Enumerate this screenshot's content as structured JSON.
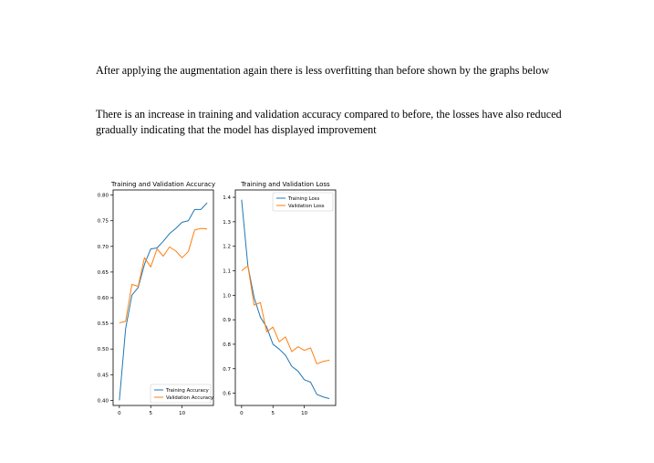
{
  "document": {
    "paragraphs": [
      "After applying the augmentation again there is less overfitting than before shown by the graphs below",
      "There is an increase in training and validation accuracy compared to before, the losses have also reduced gradually indicating that the model has displayed improvement"
    ]
  },
  "chart_data": [
    {
      "type": "line",
      "title": "Training and Validation Accuracy",
      "xlabel": "",
      "ylabel": "",
      "xlim": [
        -1,
        15
      ],
      "ylim": [
        0.39,
        0.81
      ],
      "xticks": [
        0,
        5,
        10
      ],
      "yticks": [
        0.4,
        0.45,
        0.5,
        0.55,
        0.6,
        0.65,
        0.7,
        0.75,
        0.8
      ],
      "ytick_labels": [
        "0.40",
        "0.45",
        "0.50",
        "0.55",
        "0.60",
        "0.65",
        "0.70",
        "0.75",
        "0.80"
      ],
      "xtick_labels": [
        "0",
        "5",
        "10"
      ],
      "legend_position": "lower-right",
      "grid": false,
      "x": [
        0,
        1,
        2,
        3,
        4,
        5,
        6,
        7,
        8,
        9,
        10,
        11,
        12,
        13,
        14
      ],
      "series": [
        {
          "name": "Training Accuracy",
          "color": "#1f77b4",
          "values": [
            0.4,
            0.54,
            0.605,
            0.62,
            0.665,
            0.695,
            0.697,
            0.71,
            0.725,
            0.735,
            0.747,
            0.75,
            0.772,
            0.772,
            0.785
          ]
        },
        {
          "name": "Validation Accuracy",
          "color": "#ff7f0e",
          "values": [
            0.551,
            0.554,
            0.626,
            0.622,
            0.678,
            0.66,
            0.695,
            0.681,
            0.699,
            0.691,
            0.678,
            0.69,
            0.732,
            0.735,
            0.734
          ]
        }
      ]
    },
    {
      "type": "line",
      "title": "Training and Validation Loss",
      "xlabel": "",
      "ylabel": "",
      "xlim": [
        -1,
        15
      ],
      "ylim": [
        0.55,
        1.43
      ],
      "xticks": [
        0,
        5,
        10
      ],
      "yticks": [
        0.6,
        0.7,
        0.8,
        0.9,
        1.0,
        1.1,
        1.2,
        1.3,
        1.4
      ],
      "ytick_labels": [
        "0.6",
        "0.7",
        "0.8",
        "0.9",
        "1.0",
        "1.1",
        "1.2",
        "1.3",
        "1.4"
      ],
      "xtick_labels": [
        "0",
        "5",
        "10"
      ],
      "legend_position": "upper-right",
      "grid": false,
      "x": [
        0,
        1,
        2,
        3,
        4,
        5,
        6,
        7,
        8,
        9,
        10,
        11,
        12,
        13,
        14
      ],
      "series": [
        {
          "name": "Training Loss",
          "color": "#1f77b4",
          "values": [
            1.39,
            1.12,
            0.99,
            0.91,
            0.87,
            0.8,
            0.78,
            0.755,
            0.71,
            0.69,
            0.655,
            0.645,
            0.595,
            0.585,
            0.578
          ]
        },
        {
          "name": "Validation Loss",
          "color": "#ff7f0e",
          "values": [
            1.1,
            1.12,
            0.96,
            0.97,
            0.85,
            0.87,
            0.81,
            0.83,
            0.77,
            0.79,
            0.775,
            0.785,
            0.72,
            0.73,
            0.735
          ]
        }
      ]
    }
  ]
}
